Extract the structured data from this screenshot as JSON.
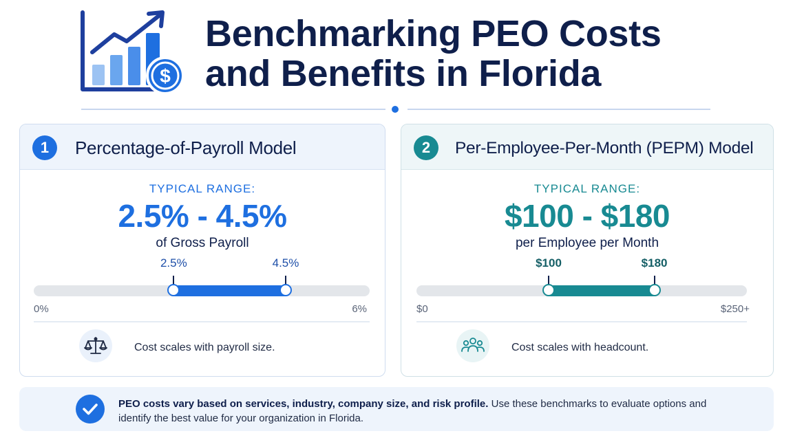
{
  "header": {
    "title_line1": "Benchmarking PEO Costs",
    "title_line2": "and Benefits in Florida",
    "logo_icon": "growth-chart-dollar-icon"
  },
  "cards": [
    {
      "number": "1",
      "title": "Percentage-of-Payroll Model",
      "range_label": "TYPICAL RANGE:",
      "range_value": "2.5% - 4.5%",
      "range_unit": "of Gross Payroll",
      "slider": {
        "min_label": "0%",
        "max_label": "6%",
        "low_label": "2.5%",
        "high_label": "4.5%",
        "min": 0,
        "max": 6,
        "low": 2.5,
        "high": 4.5
      },
      "feature_icon": "balance-scale-icon",
      "feature_text": "Cost scales with payroll size.",
      "accent": "#1e6fe0"
    },
    {
      "number": "2",
      "title": "Per-Employee-Per-Month (PEPM) Model",
      "range_label": "TYPICAL RANGE:",
      "range_value": "$100 - $180",
      "range_unit": "per Employee per Month",
      "slider": {
        "min_label": "$0",
        "max_label": "$250+",
        "low_label": "$100",
        "high_label": "$180",
        "min": 0,
        "max": 250,
        "low": 100,
        "high": 180
      },
      "feature_icon": "people-group-icon",
      "feature_text": "Cost scales with headcount.",
      "accent": "#188a92"
    }
  ],
  "footer": {
    "icon": "checkmark-icon",
    "bold_text": "PEO costs vary based on services, industry, company size, and risk profile.",
    "text": " Use these benchmarks to evaluate options and identify the best value for your organization in Florida."
  }
}
